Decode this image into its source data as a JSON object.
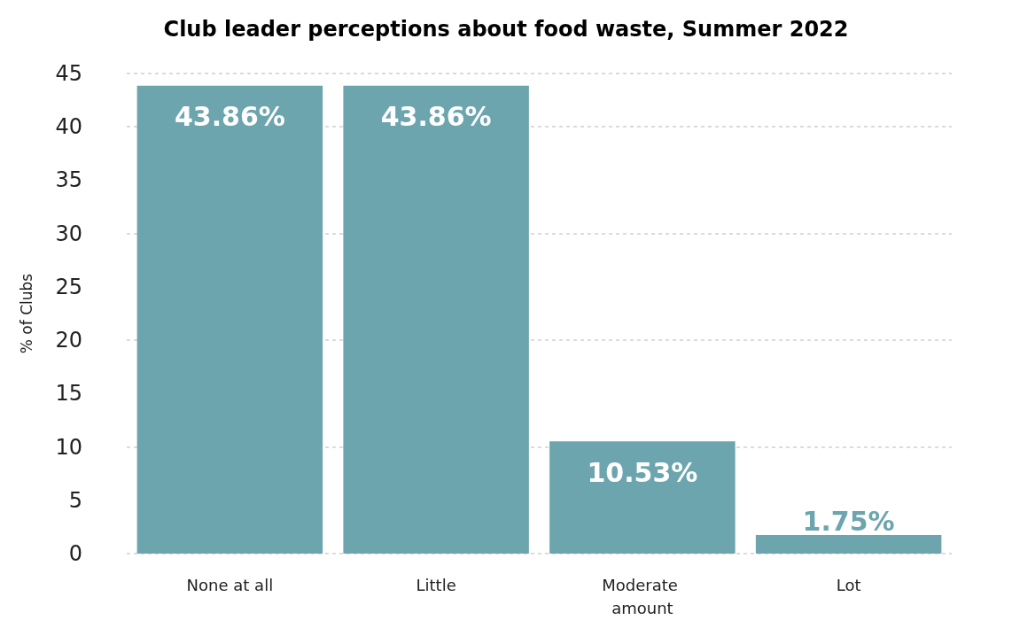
{
  "chart_data": {
    "type": "bar",
    "title": "Club leader perceptions about food waste, Summer 2022",
    "ylabel": "% of Clubs",
    "categories": [
      "None at all",
      "Little",
      "Moderate amount",
      "Lot"
    ],
    "values": [
      43.86,
      43.86,
      10.53,
      1.75
    ],
    "color": "#6ca5ae",
    "value_labels": [
      "43.86%",
      "43.86%",
      "10.53%",
      "1.75%"
    ],
    "ylim": [
      0,
      45
    ],
    "yticks": [
      0,
      5,
      10,
      15,
      20,
      25,
      30,
      35,
      40,
      45
    ],
    "grid": "y"
  }
}
